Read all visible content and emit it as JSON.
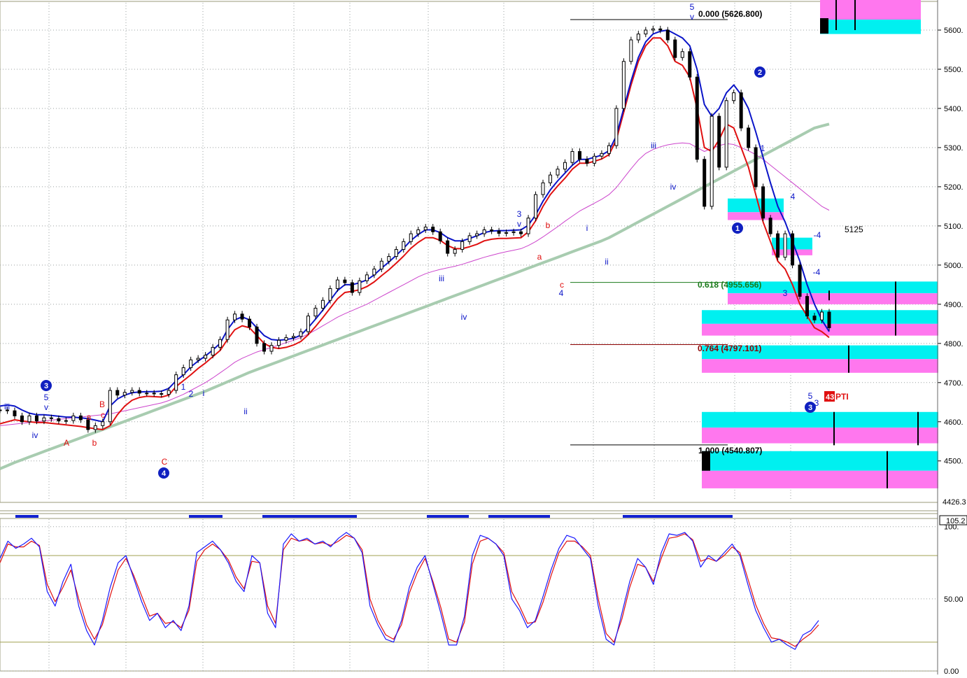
{
  "chart_data": [
    {
      "type": "line",
      "panel": "price",
      "ylim": [
        4426.3,
        5690
      ],
      "y_ticks": [
        "5600.",
        "5500.",
        "5400.",
        "5300.",
        "5200.",
        "5100.",
        "5000.",
        "4900.",
        "4800.",
        "4700.",
        "4600.",
        "4500."
      ],
      "y_tick_values": [
        5600,
        5500,
        5400,
        5300,
        5200,
        5100,
        5000,
        4900,
        4800,
        4700,
        4600,
        4500
      ],
      "y_min_label": "4426.3",
      "grid": true,
      "series": [
        {
          "role": "close",
          "color": "#000000",
          "values": [
            4630,
            4628,
            4615,
            4600,
            4615,
            4602,
            4610,
            4608,
            4602,
            4603,
            4615,
            4605,
            4580,
            4590,
            4600,
            4680,
            4668,
            4675,
            4680,
            4673,
            4673,
            4672,
            4670,
            4680,
            4720,
            4738,
            4758,
            4762,
            4770,
            4790,
            4810,
            4860,
            4875,
            4862,
            4842,
            4800,
            4780,
            4795,
            4808,
            4815,
            4818,
            4830,
            4870,
            4890,
            4910,
            4940,
            4962,
            4955,
            4930,
            4960,
            4975,
            4990,
            5010,
            5022,
            5040,
            5060,
            5080,
            5090,
            5097,
            5085,
            5062,
            5030,
            5040,
            5060,
            5075,
            5080,
            5090,
            5087,
            5081,
            5083,
            5085,
            5080,
            5120,
            5180,
            5210,
            5230,
            5245,
            5262,
            5290,
            5270,
            5260,
            5278,
            5285,
            5305,
            5400,
            5520,
            5575,
            5590,
            5600,
            5603,
            5600,
            5575,
            5530,
            5545,
            5480,
            5270,
            5150,
            5380,
            5250,
            5420,
            5440,
            5350,
            5300,
            5200,
            5120,
            5080,
            5020,
            5080,
            5000,
            4920,
            4870,
            4860,
            4880,
            4840
          ]
        },
        {
          "role": "fast_ma",
          "color": "#0a14c8",
          "values": [
            4640,
            4643,
            4640,
            4630,
            4622,
            4618,
            4618,
            4616,
            4614,
            4612,
            4612,
            4610,
            4608,
            4604,
            4600,
            4640,
            4658,
            4668,
            4674,
            4676,
            4677,
            4677,
            4678,
            4685,
            4705,
            4720,
            4740,
            4755,
            4768,
            4783,
            4800,
            4835,
            4860,
            4868,
            4860,
            4840,
            4820,
            4810,
            4808,
            4810,
            4813,
            4821,
            4840,
            4862,
            4885,
            4910,
            4935,
            4950,
            4950,
            4955,
            4962,
            4975,
            4992,
            5008,
            5025,
            5043,
            5063,
            5078,
            5090,
            5090,
            5083,
            5070,
            5062,
            5062,
            5068,
            5075,
            5083,
            5087,
            5088,
            5088,
            5089,
            5090,
            5102,
            5128,
            5163,
            5192,
            5215,
            5235,
            5255,
            5270,
            5270,
            5275,
            5281,
            5292,
            5330,
            5400,
            5470,
            5530,
            5570,
            5590,
            5597,
            5600,
            5590,
            5580,
            5560,
            5500,
            5410,
            5380,
            5400,
            5440,
            5460,
            5435,
            5400,
            5340,
            5275,
            5210,
            5150,
            5110,
            5060,
            5010,
            4950,
            4900,
            4860,
            4830
          ]
        },
        {
          "role": "slow_ma",
          "color": "#e01010",
          "values": [
            4595,
            4600,
            4605,
            4602,
            4600,
            4598,
            4598,
            4596,
            4594,
            4592,
            4590,
            4588,
            4585,
            4582,
            4580,
            4590,
            4618,
            4640,
            4655,
            4662,
            4665,
            4664,
            4663,
            4668,
            4690,
            4705,
            4720,
            4736,
            4750,
            4766,
            4782,
            4810,
            4835,
            4845,
            4840,
            4820,
            4800,
            4790,
            4787,
            4790,
            4796,
            4805,
            4822,
            4843,
            4866,
            4890,
            4914,
            4930,
            4933,
            4937,
            4945,
            4957,
            4973,
            4988,
            5005,
            5023,
            5043,
            5058,
            5070,
            5070,
            5063,
            5050,
            5042,
            5042,
            5047,
            5053,
            5062,
            5066,
            5068,
            5068,
            5069,
            5070,
            5085,
            5113,
            5150,
            5180,
            5202,
            5222,
            5245,
            5260,
            5260,
            5265,
            5271,
            5282,
            5320,
            5390,
            5460,
            5520,
            5560,
            5580,
            5580,
            5560,
            5520,
            5510,
            5480,
            5400,
            5300,
            5290,
            5320,
            5360,
            5350,
            5300,
            5250,
            5180,
            5110,
            5060,
            5010,
            4990,
            4950,
            4900,
            4870,
            4840,
            4830,
            4815
          ]
        },
        {
          "role": "long_ma",
          "color": "#cc44cc",
          "values": [
            4590,
            4592,
            4594,
            4596,
            4598,
            4600,
            4602,
            4604,
            4606,
            4608,
            4610,
            4612,
            4614,
            4616,
            4618,
            4620,
            4624,
            4628,
            4632,
            4636,
            4640,
            4644,
            4648,
            4654,
            4662,
            4670,
            4680,
            4690,
            4700,
            4712,
            4725,
            4738,
            4752,
            4762,
            4770,
            4778,
            4784,
            4790,
            4796,
            4802,
            4808,
            4815,
            4824,
            4834,
            4845,
            4856,
            4867,
            4876,
            4884,
            4892,
            4900,
            4910,
            4920,
            4930,
            4940,
            4950,
            4960,
            4970,
            4978,
            4984,
            4989,
            4993,
            4997,
            5002,
            5008,
            5014,
            5020,
            5025,
            5030,
            5034,
            5038,
            5042,
            5050,
            5060,
            5072,
            5085,
            5098,
            5112,
            5125,
            5138,
            5148,
            5158,
            5168,
            5180,
            5198,
            5222,
            5246,
            5268,
            5285,
            5295,
            5302,
            5307,
            5310,
            5312,
            5310,
            5300,
            5290,
            5298,
            5305,
            5310,
            5308,
            5300,
            5292,
            5282,
            5270,
            5255,
            5240,
            5225,
            5210,
            5195,
            5180,
            5165,
            5150,
            5140
          ]
        },
        {
          "role": "ma_200",
          "color": "#a8ccb0",
          "values": [
            4480,
            4488,
            4496,
            4503,
            4510,
            4517,
            4524,
            4531,
            4538,
            4545,
            4552,
            4559,
            4566,
            4573,
            4580,
            4587,
            4594,
            4601,
            4608,
            4615,
            4622,
            4629,
            4636,
            4643,
            4650,
            4657,
            4664,
            4671,
            4678,
            4686,
            4694,
            4702,
            4710,
            4718,
            4726,
            4733,
            4740,
            4747,
            4754,
            4761,
            4768,
            4775,
            4782,
            4789,
            4796,
            4803,
            4810,
            4817,
            4824,
            4831,
            4838,
            4845,
            4852,
            4859,
            4866,
            4873,
            4880,
            4887,
            4894,
            4901,
            4908,
            4915,
            4922,
            4929,
            4936,
            4943,
            4950,
            4957,
            4964,
            4971,
            4978,
            4985,
            4992,
            4999,
            5006,
            5013,
            5020,
            5027,
            5034,
            5041,
            5048,
            5055,
            5062,
            5070,
            5080,
            5090,
            5100,
            5110,
            5120,
            5130,
            5140,
            5150,
            5160,
            5170,
            5180,
            5190,
            5200,
            5210,
            5220,
            5230,
            5240,
            5250,
            5260,
            5270,
            5280,
            5290,
            5300,
            5310,
            5320,
            5330,
            5340,
            5350,
            5355,
            5360
          ]
        }
      ],
      "fib_labels": [
        {
          "text": "0.000 (5626.800)",
          "value": 5626.8,
          "color": "#000000"
        },
        {
          "text": "0.618 (4955.656)",
          "value": 4955.656,
          "color": "#1a7a1a"
        },
        {
          "text": "0.764 (4797.101)",
          "value": 4797.101,
          "color": "#8b0000"
        },
        {
          "text": "1.000 (4540.807)",
          "value": 4540.807,
          "color": "#000000"
        }
      ],
      "level_label": "5125",
      "pti_value": "43",
      "pti_label": "PTI",
      "wave_labels": [
        {
          "text": "iii",
          "color": "#0a14c8"
        },
        {
          "text": "5",
          "color": "#0a14c8"
        },
        {
          "text": "v",
          "color": "#0a14c8"
        },
        {
          "text": "iv",
          "color": "#0a14c8"
        },
        {
          "text": "A",
          "color": "#e01010"
        },
        {
          "text": "a",
          "color": "#e01010"
        },
        {
          "text": "B",
          "color": "#e01010"
        },
        {
          "text": "c",
          "color": "#e01010"
        },
        {
          "text": "b",
          "color": "#e01010"
        },
        {
          "text": "C",
          "color": "#e01010"
        },
        {
          "text": "1",
          "color": "#0a14c8"
        },
        {
          "text": "2",
          "color": "#0a14c8"
        },
        {
          "text": "i",
          "color": "#0a14c8"
        },
        {
          "text": "ii",
          "color": "#0a14c8"
        },
        {
          "text": "iii",
          "color": "#0a14c8"
        },
        {
          "text": "iv",
          "color": "#0a14c8"
        },
        {
          "text": "3",
          "color": "#0a14c8"
        },
        {
          "text": "v",
          "color": "#0a14c8"
        },
        {
          "text": "b",
          "color": "#e01010"
        },
        {
          "text": "a",
          "color": "#e01010"
        },
        {
          "text": "c",
          "color": "#e01010"
        },
        {
          "text": "4",
          "color": "#0a14c8"
        },
        {
          "text": "i",
          "color": "#0a14c8"
        },
        {
          "text": "ii",
          "color": "#0a14c8"
        },
        {
          "text": "iii",
          "color": "#0a14c8"
        },
        {
          "text": "iv",
          "color": "#0a14c8"
        },
        {
          "text": "5",
          "color": "#0a14c8"
        },
        {
          "text": "v",
          "color": "#0a14c8"
        },
        {
          "text": "1",
          "color": "#0a14c8"
        },
        {
          "text": "3",
          "color": "#0a14c8"
        },
        {
          "text": "4",
          "color": "#0a14c8"
        },
        {
          "text": "-4",
          "color": "#0a14c8"
        },
        {
          "text": "-4",
          "color": "#0a14c8"
        },
        {
          "text": "5",
          "color": "#0a14c8"
        },
        {
          "text": "3",
          "color": "#0a14c8"
        }
      ],
      "circled_labels": [
        "3",
        "4",
        "1",
        "2",
        "3"
      ]
    },
    {
      "type": "line",
      "panel": "oscillator",
      "ylim": [
        0,
        105.2
      ],
      "y_ticks": [
        "100.",
        "50.00",
        "0.00"
      ],
      "y_tick_values": [
        100,
        50,
        0
      ],
      "y_max_label": "105.2",
      "overbought": 80,
      "oversold": 20,
      "series": [
        {
          "role": "k",
          "color": "#1a1aff",
          "values": [
            78,
            90,
            85,
            88,
            92,
            86,
            55,
            45,
            62,
            74,
            45,
            28,
            18,
            35,
            58,
            75,
            80,
            64,
            48,
            35,
            40,
            30,
            35,
            28,
            45,
            82,
            86,
            90,
            84,
            75,
            62,
            55,
            80,
            75,
            40,
            30,
            88,
            95,
            90,
            92,
            88,
            90,
            86,
            92,
            96,
            92,
            82,
            45,
            32,
            22,
            20,
            35,
            58,
            72,
            80,
            60,
            40,
            18,
            18,
            38,
            80,
            94,
            92,
            88,
            80,
            50,
            42,
            30,
            35,
            52,
            70,
            85,
            94,
            92,
            85,
            78,
            45,
            22,
            18,
            40,
            62,
            78,
            72,
            60,
            82,
            95,
            94,
            96,
            90,
            72,
            80,
            76,
            82,
            88,
            80,
            60,
            42,
            30,
            20,
            22,
            18,
            15,
            25,
            28,
            35
          ]
        },
        {
          "role": "d",
          "color": "#e01010",
          "values": [
            75,
            88,
            86,
            86,
            90,
            87,
            60,
            48,
            58,
            70,
            50,
            32,
            22,
            32,
            52,
            70,
            78,
            66,
            52,
            38,
            40,
            33,
            34,
            30,
            42,
            76,
            84,
            88,
            84,
            77,
            65,
            57,
            76,
            75,
            45,
            33,
            84,
            92,
            90,
            91,
            88,
            89,
            87,
            90,
            94,
            92,
            84,
            50,
            35,
            25,
            22,
            32,
            54,
            68,
            78,
            62,
            44,
            22,
            20,
            34,
            74,
            90,
            92,
            88,
            82,
            55,
            45,
            33,
            34,
            48,
            66,
            82,
            90,
            90,
            86,
            80,
            50,
            26,
            20,
            36,
            58,
            74,
            72,
            62,
            78,
            92,
            93,
            95,
            91,
            76,
            78,
            76,
            80,
            86,
            82,
            64,
            46,
            33,
            23,
            22,
            20,
            17,
            22,
            26,
            32
          ]
        }
      ]
    }
  ]
}
